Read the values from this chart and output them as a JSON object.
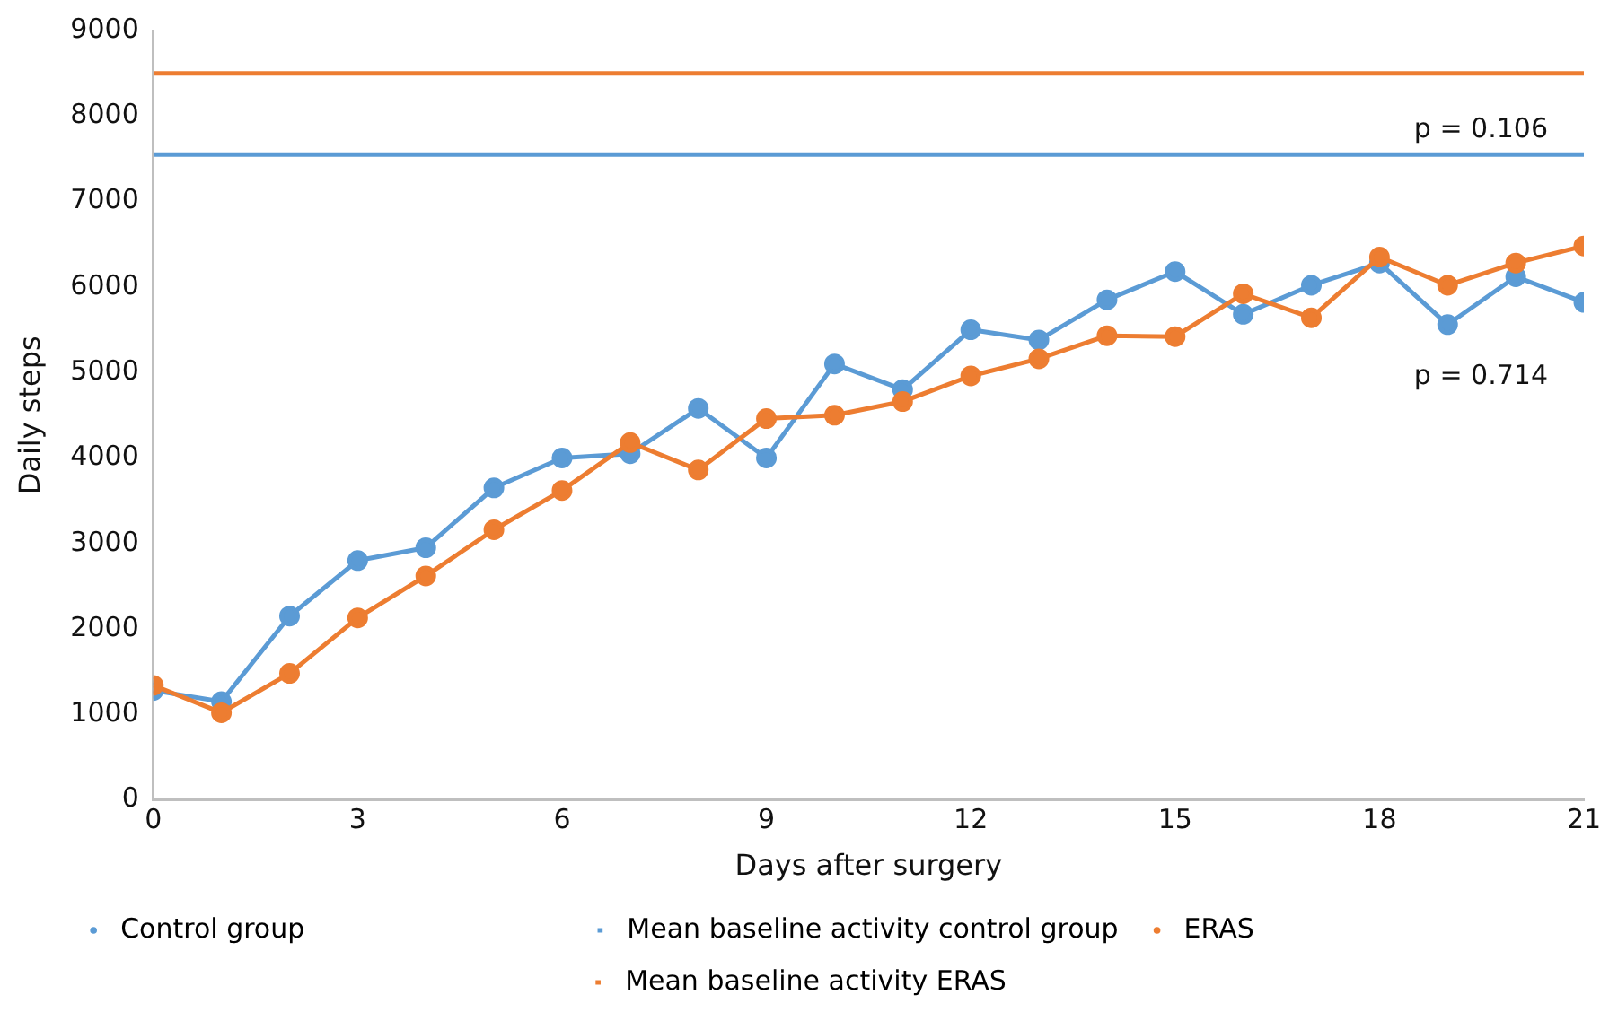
{
  "chart_data": {
    "type": "line",
    "xlabel": "Days after surgery",
    "ylabel": "Daily steps",
    "x": [
      0,
      1,
      2,
      3,
      4,
      5,
      6,
      7,
      8,
      9,
      10,
      11,
      12,
      13,
      14,
      15,
      16,
      17,
      18,
      19,
      20,
      21
    ],
    "series": [
      {
        "name": "Control group",
        "color": "#5b9bd5",
        "values": [
          1280,
          1150,
          2150,
          2800,
          2950,
          3650,
          4000,
          4050,
          4580,
          4000,
          5100,
          4800,
          5500,
          5380,
          5850,
          6180,
          5680,
          6020,
          6280,
          5560,
          6120,
          5820
        ]
      },
      {
        "name": "ERAS",
        "color": "#ed7d31",
        "values": [
          1340,
          1020,
          1480,
          2130,
          2620,
          3160,
          3620,
          4180,
          3860,
          4460,
          4500,
          4660,
          4960,
          5160,
          5430,
          5420,
          5920,
          5640,
          6350,
          6020,
          6280,
          6480
        ]
      }
    ],
    "ref_lines": [
      {
        "axis": "y",
        "value": 7550,
        "label": "Mean baseline activity control group",
        "color": "#5b9bd5",
        "line_style": "solid"
      },
      {
        "axis": "y",
        "value": 8500,
        "label": "Mean baseline activity ERAS",
        "color": "#ed7d31",
        "line_style": "solid"
      }
    ],
    "annotations": [
      "p = 0.106",
      "p = 0.714"
    ],
    "xlim": [
      0,
      21
    ],
    "xticks": [
      0,
      3,
      6,
      9,
      12,
      15,
      18,
      21
    ],
    "ylim": [
      0,
      9000
    ],
    "yticks": [
      0,
      1000,
      2000,
      3000,
      4000,
      5000,
      6000,
      7000,
      8000,
      9000
    ],
    "grid": false,
    "legend": "bottom",
    "marker": "circle",
    "line_style": "solid"
  }
}
